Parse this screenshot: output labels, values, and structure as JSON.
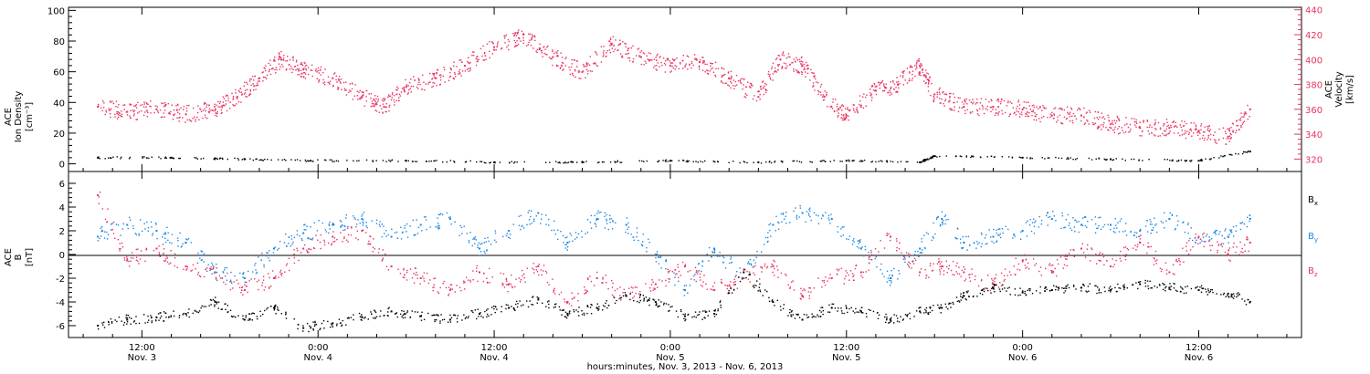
{
  "colors": {
    "black": "#000000",
    "pink": "#e8335f",
    "blue": "#1b87e3"
  },
  "chart_data": [
    {
      "type": "scatter",
      "panel": "top",
      "left_axis": {
        "label_lines": [
          "ACE",
          "Ion Density",
          "[cm⁻³]"
        ],
        "ylim": [
          -5,
          102
        ],
        "ticks": [
          "0",
          "20",
          "40",
          "60",
          "80",
          "100"
        ]
      },
      "right_axis": {
        "label_lines": [
          "ACE",
          "Velocity",
          "[km/s]"
        ],
        "ylim": [
          310,
          442
        ],
        "ticks": [
          "320",
          "340",
          "360",
          "380",
          "400",
          "420",
          "440"
        ]
      },
      "series": [
        {
          "name": "",
          "axis": "left",
          "color": "#000000",
          "note": "ion density (black dots)",
          "x": [
            9.0,
            14.0,
            19.0,
            23.5,
            30.0,
            36.0,
            42.0,
            48.0,
            54.0,
            60.0,
            65.0,
            66.0,
            72.0,
            78.0,
            84.0,
            87.5
          ],
          "y": [
            4,
            4,
            3,
            2,
            2,
            1,
            1,
            2,
            1,
            2,
            1,
            5,
            4,
            3,
            2,
            8
          ]
        },
        {
          "name": "",
          "axis": "right",
          "color": "#e8335f",
          "note": "solar wind velocity (pink dots)",
          "x": [
            9.0,
            11.0,
            13.0,
            15.0,
            17.0,
            18.5,
            20.0,
            21.5,
            23.0,
            25.0,
            27.0,
            28.5,
            30.0,
            32.0,
            34.0,
            36.0,
            38.0,
            40.0,
            42.0,
            44.0,
            46.0,
            48.0,
            50.0,
            52.0,
            54.0,
            55.5,
            57.0,
            58.5,
            60.0,
            62.0,
            63.5,
            65.0,
            66.0,
            68.0,
            70.0,
            72.0,
            74.0,
            76.0,
            78.0,
            80.0,
            82.0,
            84.0,
            86.0,
            87.5
          ],
          "y": [
            362,
            358,
            360,
            356,
            360,
            370,
            385,
            400,
            392,
            385,
            370,
            362,
            378,
            385,
            395,
            410,
            420,
            402,
            390,
            412,
            402,
            395,
            398,
            385,
            370,
            400,
            395,
            370,
            355,
            375,
            380,
            395,
            372,
            362,
            362,
            360,
            355,
            355,
            348,
            345,
            345,
            342,
            338,
            360
          ]
        }
      ]
    },
    {
      "type": "scatter",
      "panel": "bottom",
      "left_axis": {
        "label_lines": [
          "ACE",
          "B",
          "[nT]"
        ],
        "ylim": [
          -7,
          7
        ],
        "ticks": [
          "-6",
          "-4",
          "-2",
          "0",
          "2",
          "4",
          "6"
        ]
      },
      "legend": [
        "B",
        "B",
        "B"
      ],
      "legend_sub": [
        "x",
        "y",
        "z"
      ],
      "series": [
        {
          "name": "B x",
          "color": "#000000",
          "x": [
            9.0,
            11.0,
            13.0,
            15.0,
            17.0,
            19.0,
            21.0,
            23.0,
            25.0,
            27.0,
            29.0,
            31.0,
            33.0,
            35.0,
            37.0,
            39.0,
            41.0,
            43.0,
            45.0,
            47.0,
            49.0,
            51.0,
            53.0,
            55.0,
            57.0,
            59.0,
            61.0,
            63.0,
            65.0,
            66.5,
            68.0,
            70.0,
            72.0,
            74.0,
            76.0,
            78.0,
            80.0,
            82.0,
            84.0,
            86.0,
            87.5
          ],
          "y": [
            -6,
            -5.5,
            -5.3,
            -5.0,
            -4.0,
            -5.5,
            -4.5,
            -6.2,
            -5.8,
            -5.3,
            -4.8,
            -5.2,
            -5.5,
            -5.0,
            -4.5,
            -3.8,
            -5.0,
            -4.5,
            -3.5,
            -4.0,
            -5.2,
            -5.0,
            -1.5,
            -4.0,
            -5.5,
            -4.5,
            -4.8,
            -5.5,
            -4.8,
            -4.5,
            -3.5,
            -2.8,
            -3.2,
            -3.0,
            -2.8,
            -3.0,
            -2.5,
            -2.8,
            -3.0,
            -3.3,
            -4.0
          ]
        },
        {
          "name": "B y",
          "color": "#1b87e3",
          "x": [
            9.0,
            11.0,
            13.0,
            15.0,
            17.0,
            19.0,
            21.0,
            23.0,
            25.0,
            27.0,
            29.0,
            31.0,
            33.0,
            35.0,
            37.0,
            39.0,
            41.0,
            43.0,
            45.0,
            47.0,
            49.0,
            51.0,
            53.0,
            55.0,
            57.0,
            59.0,
            61.0,
            63.0,
            65.0,
            66.5,
            68.0,
            70.0,
            72.0,
            74.0,
            76.0,
            78.0,
            80.0,
            82.0,
            84.0,
            86.0,
            87.5
          ],
          "y": [
            1.5,
            2.5,
            2.0,
            1.0,
            -1.5,
            -2.0,
            0.5,
            1.8,
            2.5,
            3.0,
            1.5,
            2.5,
            3.0,
            0.5,
            2.0,
            3.5,
            1.0,
            3.0,
            2.5,
            0.0,
            -3.0,
            0.5,
            -2.0,
            2.5,
            3.5,
            3.0,
            0.5,
            -2.0,
            0.5,
            3.0,
            1.0,
            1.5,
            2.0,
            3.0,
            2.5,
            2.5,
            2.0,
            3.0,
            1.5,
            1.5,
            3.0
          ]
        },
        {
          "name": "B z",
          "color": "#e8335f",
          "x": [
            9.0,
            11.0,
            13.0,
            15.0,
            17.0,
            19.0,
            21.0,
            23.0,
            25.0,
            27.0,
            29.0,
            31.0,
            33.0,
            35.0,
            37.0,
            39.0,
            41.0,
            43.0,
            45.0,
            47.0,
            49.0,
            51.0,
            53.0,
            55.0,
            57.0,
            59.0,
            61.0,
            63.0,
            65.0,
            66.5,
            68.0,
            70.0,
            72.0,
            74.0,
            76.0,
            78.0,
            80.0,
            82.0,
            84.0,
            86.0,
            87.5
          ],
          "y": [
            5.0,
            -0.5,
            0.5,
            -1.0,
            -1.5,
            -3.0,
            -2.0,
            0.5,
            1.5,
            2.0,
            -1.0,
            -2.0,
            -3.0,
            -1.5,
            -2.5,
            -1.0,
            -4.0,
            -2.0,
            -3.5,
            -2.5,
            -1.0,
            -3.0,
            -2.0,
            -1.0,
            -3.5,
            -2.0,
            -1.5,
            1.5,
            -1.5,
            -1.0,
            -1.5,
            -2.5,
            -0.5,
            -1.5,
            0.5,
            -1.0,
            1.0,
            -1.5,
            1.5,
            0.0,
            1.0
          ]
        }
      ]
    }
  ],
  "x_axis": {
    "xlim": [
      7.0,
      91.0
    ],
    "ticks": [
      {
        "x": 12,
        "line1": "12:00",
        "line2": "Nov. 3"
      },
      {
        "x": 24,
        "line1": "0:00",
        "line2": "Nov. 4"
      },
      {
        "x": 36,
        "line1": "12:00",
        "line2": "Nov. 4"
      },
      {
        "x": 48,
        "line1": "0:00",
        "line2": "Nov. 5"
      },
      {
        "x": 60,
        "line1": "12:00",
        "line2": "Nov. 5"
      },
      {
        "x": 72,
        "line1": "0:00",
        "line2": "Nov. 6"
      },
      {
        "x": 84,
        "line1": "12:00",
        "line2": "Nov. 6"
      }
    ],
    "title": "hours:minutes, Nov.  3, 2013 - Nov.  6, 2013"
  }
}
